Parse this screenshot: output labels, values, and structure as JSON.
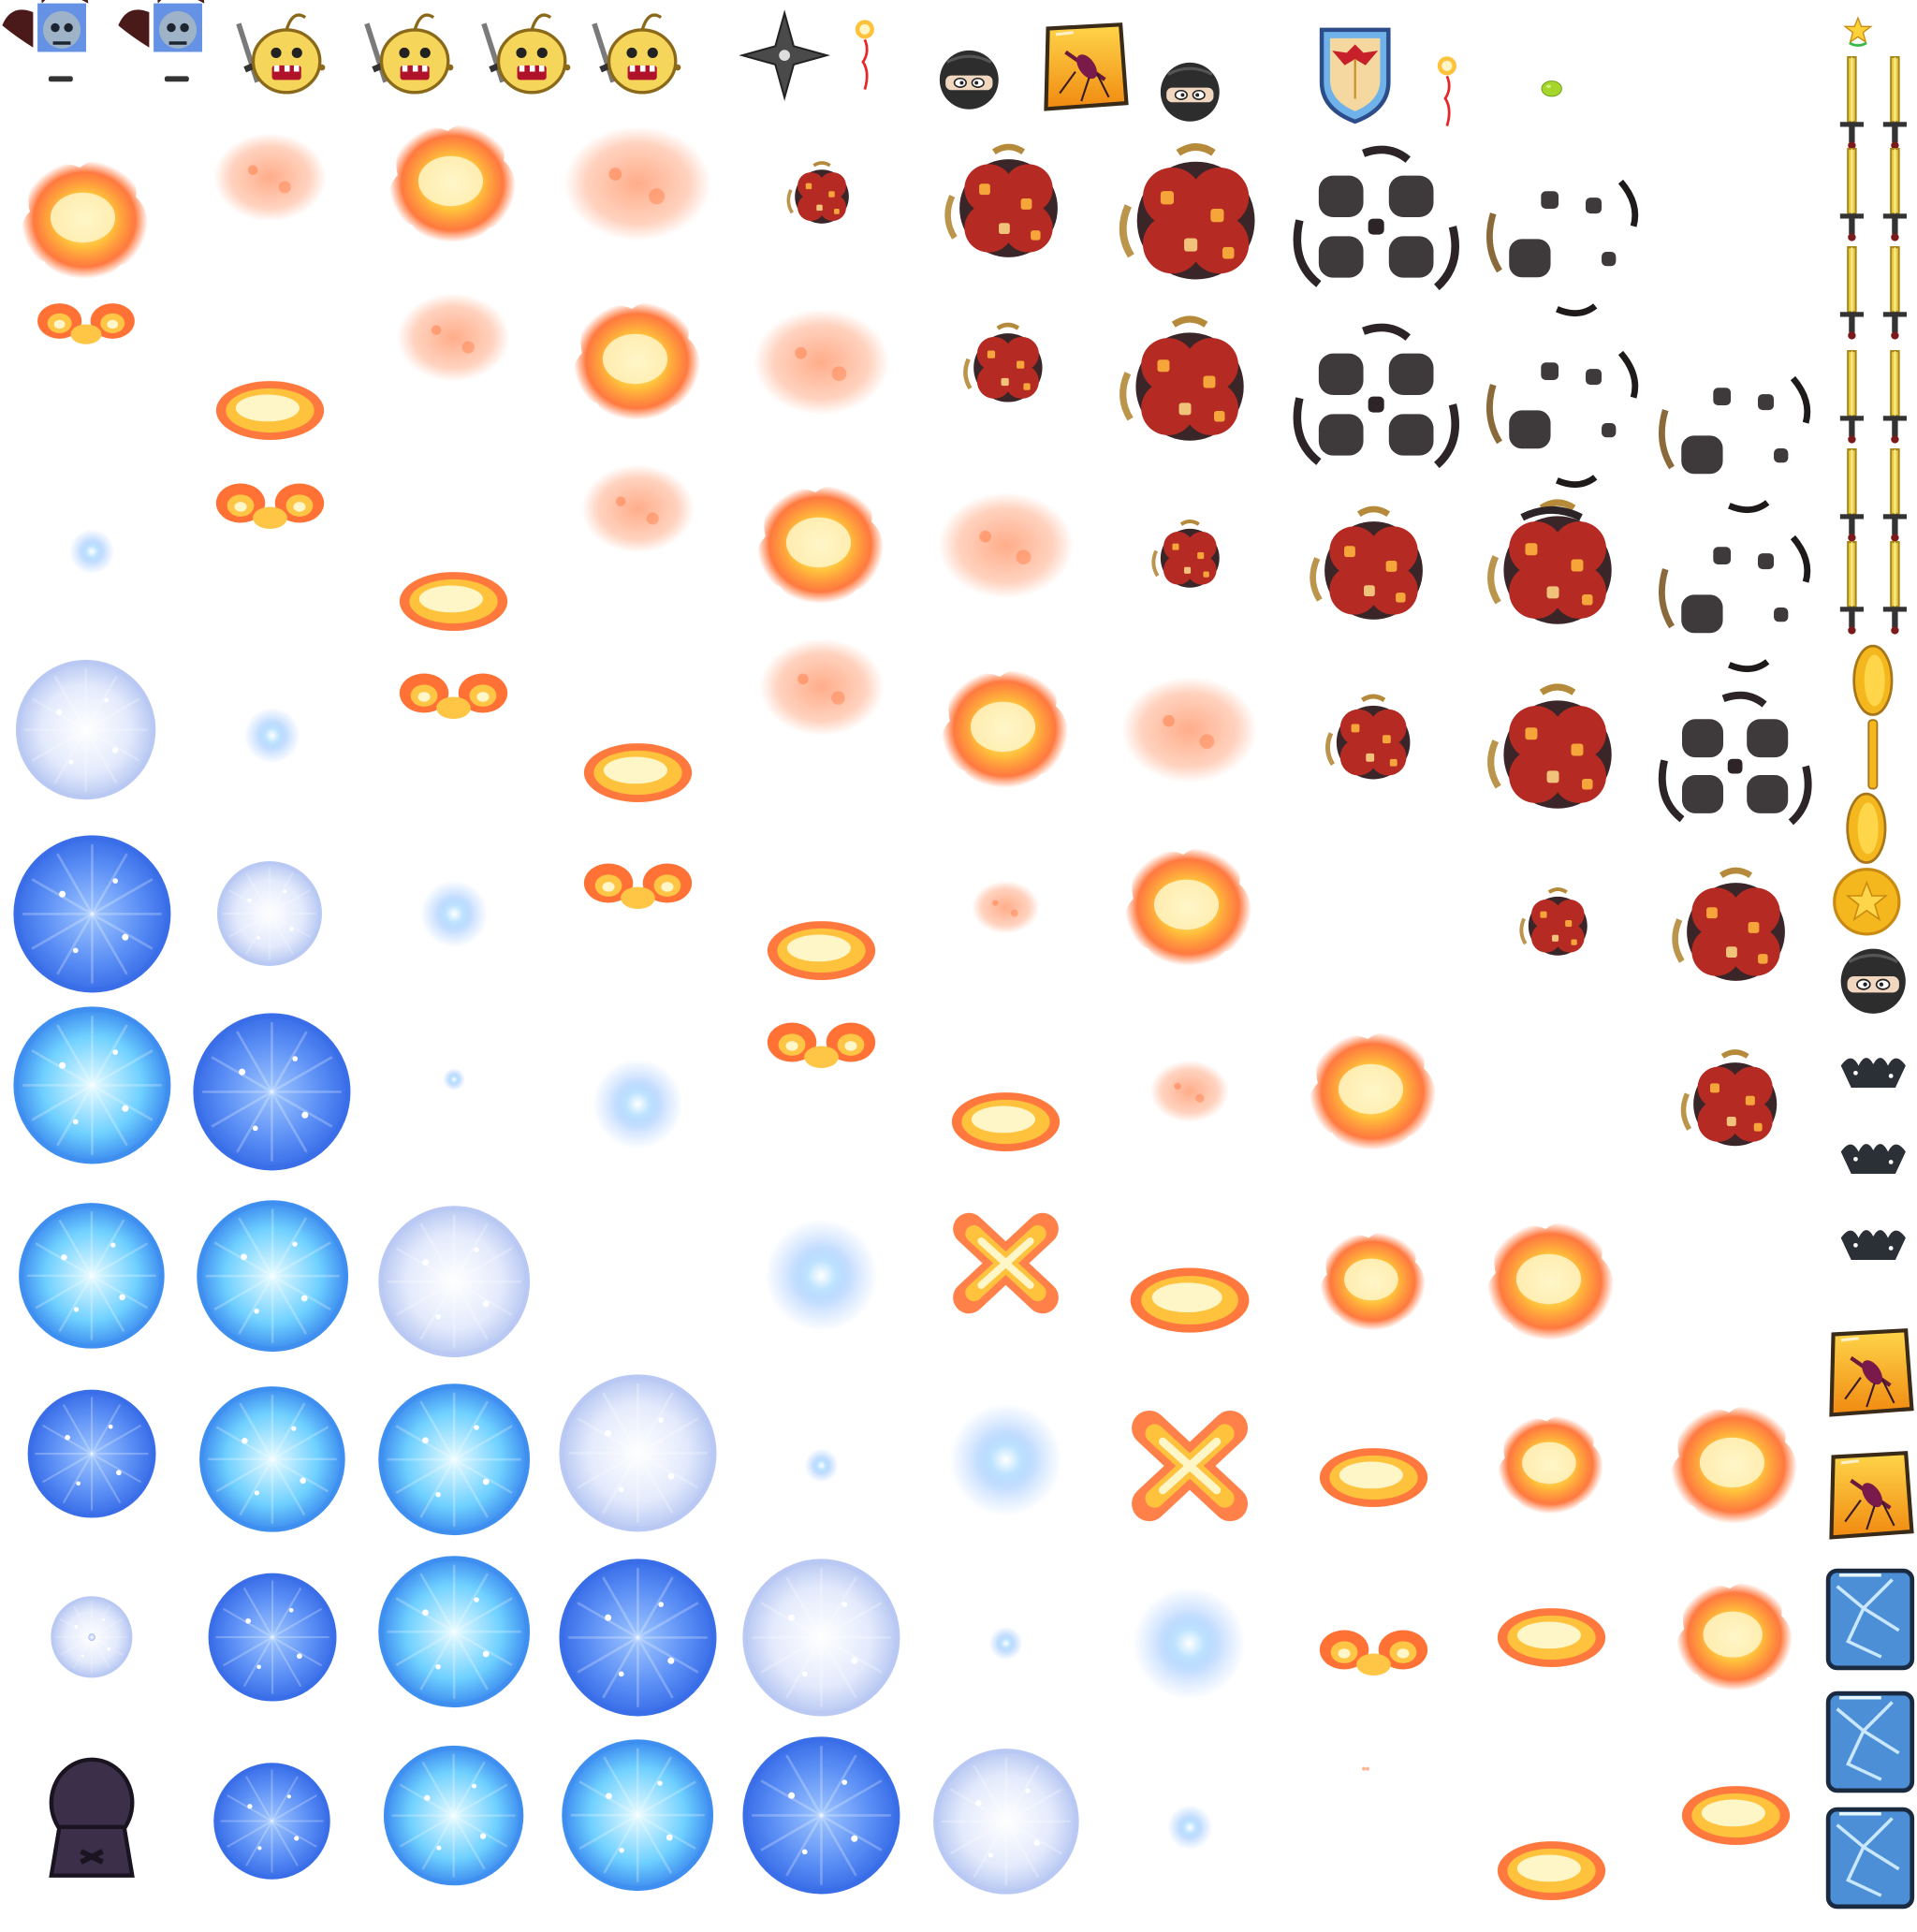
{
  "sheet": {
    "background": "#ffffff",
    "palette": {
      "fire_core": "#fff6c8",
      "fire_mid": "#ffc23c",
      "fire_outer": "#ff6a2a",
      "smoke_red": "#b52a22",
      "smoke_dark": "#5a2a28",
      "debris_dark": "#3e3a3c",
      "debris_ring": "#b58a3a",
      "ice_light": "#c9f2ff",
      "ice_mid": "#6fd0ff",
      "ice_deep": "#3a6ee8",
      "ice_pale": "#e3eafc",
      "gold": "#f4b71d",
      "monster_yellow": "#f6d65a",
      "ninja_black": "#2d2d2d",
      "reaper_purple": "#3b2f4a"
    }
  },
  "icons": [
    "bat-ghost-icon",
    "yellow-monster-with-sword-icon",
    "shuriken-icon",
    "fire-spark-icon",
    "ninja-head-icon",
    "amber-mosquito-block-icon",
    "shield-icon",
    "green-slime-icon",
    "golden-sword-icon",
    "gold-coin-icon",
    "star-coin-icon",
    "dark-wing-icon",
    "ice-block-icon",
    "hooded-reaper-icon",
    "star-bonus-icon"
  ]
}
